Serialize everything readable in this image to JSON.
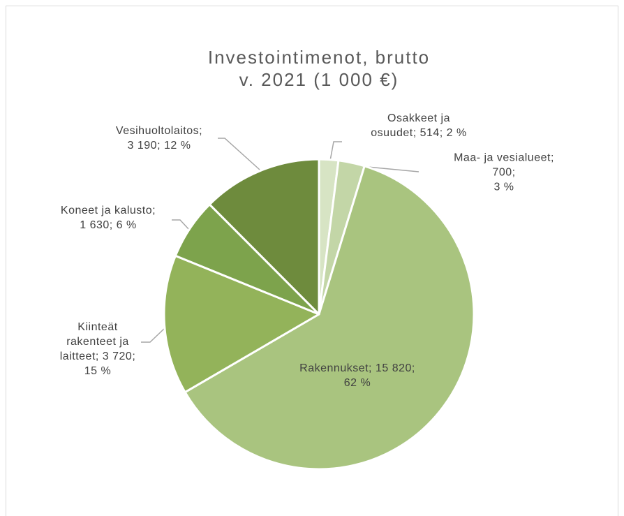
{
  "chart_data": {
    "type": "pie",
    "title": "Investointimenot, brutto\nv. 2021 (1 000 €)",
    "values": [
      514,
      700,
      15820,
      3720,
      1630,
      3190
    ],
    "value_labels": [
      "Osakkeet ja\nosuudet; 514; 2 %",
      "Maa- ja vesialueet; 700;\n3 %",
      "Rakennukset; 15 820;\n62 %",
      "Kiinteät\nrakenteet ja\nlaitteet; 3 720;\n15 %",
      "Koneet ja kalusto;\n1 630; 6 %",
      "Vesihuoltolaitos;\n3 190; 12 %"
    ],
    "colors": [
      "#d7e4c4",
      "#c3d6a7",
      "#a9c47f",
      "#93b35a",
      "#7da34c",
      "#6e8b3d"
    ]
  }
}
